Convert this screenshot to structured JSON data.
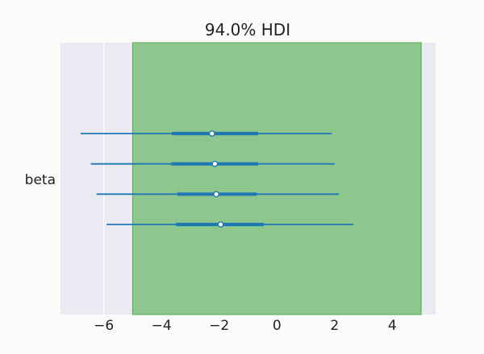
{
  "chart_data": {
    "type": "forest",
    "title": "94.0% HDI",
    "variable_label": "beta",
    "xlim": [
      -7.5,
      5.5
    ],
    "xticks": [
      -6,
      -4,
      -2,
      0,
      2,
      4
    ],
    "xtick_labels": [
      "−6",
      "−4",
      "−2",
      "0",
      "2",
      "4"
    ],
    "grid": true,
    "rope": [
      -5,
      5
    ],
    "colors": {
      "background": "#eaeaf2",
      "grid": "#ffffff",
      "rope": "#7fc27f",
      "line": "#1f77b4",
      "point_fill": "#ffffff"
    },
    "series": [
      {
        "hdi_low": -6.8,
        "hdi_high": 1.9,
        "iqr_low": -3.65,
        "iqr_high": -0.65,
        "median": -2.25
      },
      {
        "hdi_low": -6.45,
        "hdi_high": 2.0,
        "iqr_low": -3.65,
        "iqr_high": -0.65,
        "median": -2.15
      },
      {
        "hdi_low": -6.25,
        "hdi_high": 2.15,
        "iqr_low": -3.45,
        "iqr_high": -0.7,
        "median": -2.1
      },
      {
        "hdi_low": -5.9,
        "hdi_high": 2.65,
        "iqr_low": -3.5,
        "iqr_high": -0.45,
        "median": -1.95
      }
    ]
  }
}
